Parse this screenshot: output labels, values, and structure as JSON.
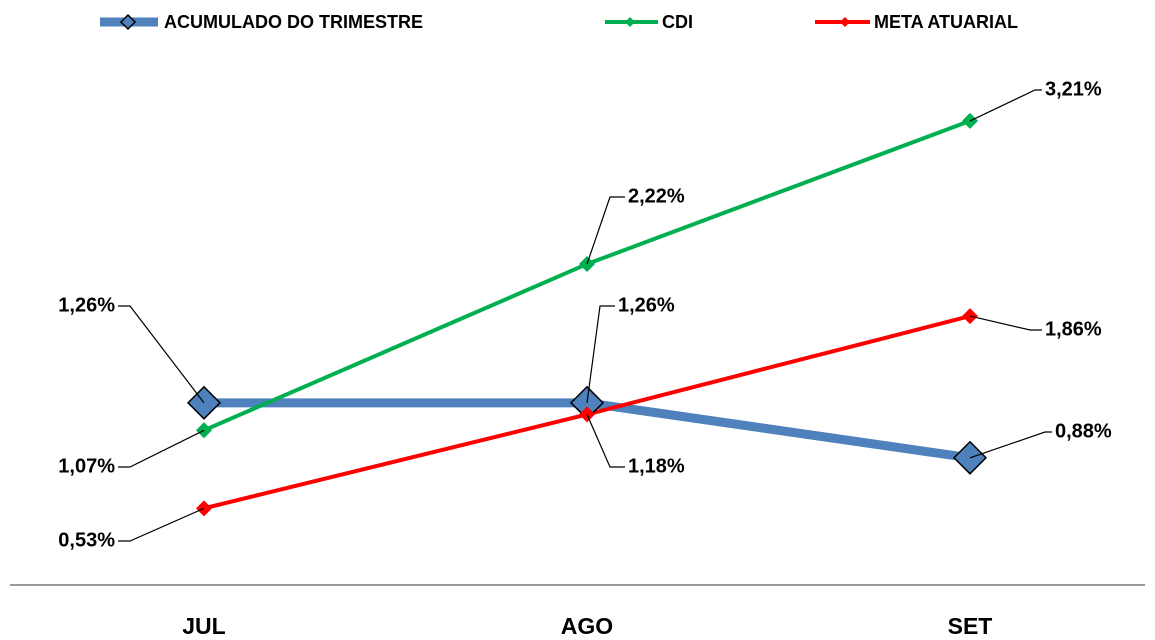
{
  "chart_data": {
    "type": "line",
    "categories": [
      "JUL",
      "AGO",
      "SET"
    ],
    "series": [
      {
        "name": "ACUMULADO DO TRIMESTRE",
        "color": "#4f81bd",
        "values": [
          1.26,
          1.26,
          0.88
        ],
        "value_labels": [
          "1,26%",
          "1,26%",
          "0,88%"
        ]
      },
      {
        "name": "CDI",
        "color": "#00b050",
        "values": [
          1.07,
          2.22,
          3.21
        ],
        "value_labels": [
          "1,07%",
          "2,22%",
          "3,21%"
        ]
      },
      {
        "name": "META ATUARIAL",
        "color": "#ff0000",
        "values": [
          0.53,
          1.18,
          1.86
        ],
        "value_labels": [
          "0,53%",
          "1,18%",
          "1,86%"
        ]
      }
    ],
    "ylim": [
      0,
      3.5
    ],
    "legend": "top"
  }
}
